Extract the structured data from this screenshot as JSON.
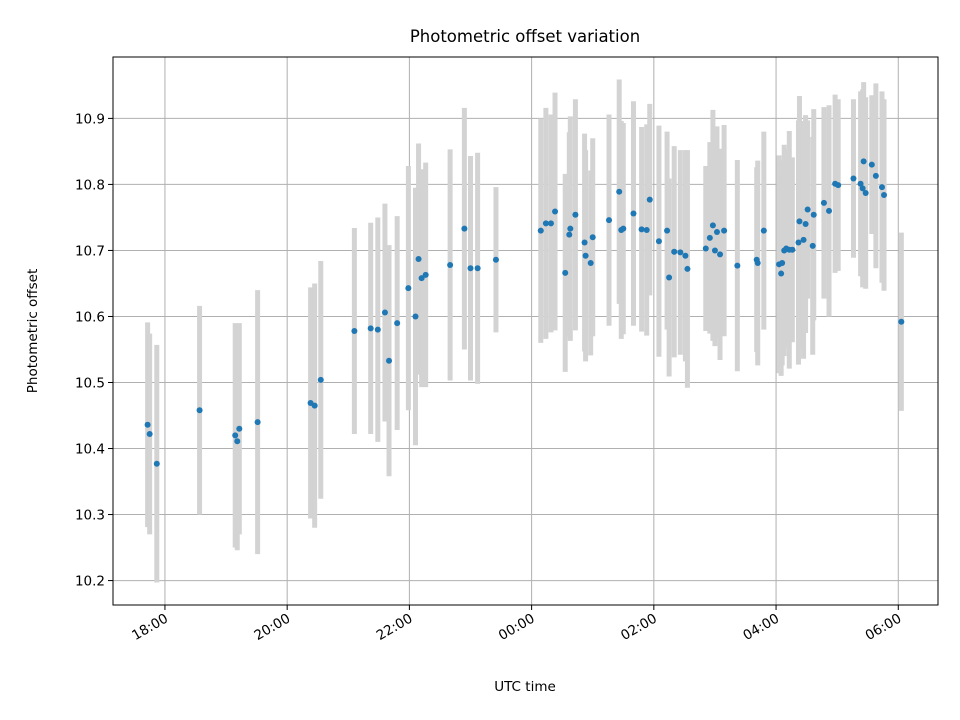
{
  "chart_data": {
    "type": "scatter",
    "title": "Photometric offset variation",
    "xlabel": "UTC time",
    "ylabel": "Photometric offset",
    "x_axis_type": "time",
    "x_range_hours_from_1800": [
      -0.85,
      12.65
    ],
    "ylim": [
      10.163,
      10.993
    ],
    "xtick_labels": [
      "18:00",
      "20:00",
      "22:00",
      "00:00",
      "02:00",
      "04:00",
      "06:00"
    ],
    "ytick_values": [
      10.2,
      10.3,
      10.4,
      10.5,
      10.6,
      10.7,
      10.8,
      10.9
    ],
    "ytick_labels": [
      "10.2",
      "10.3",
      "10.4",
      "10.5",
      "10.6",
      "10.7",
      "10.8",
      "10.9"
    ],
    "grid": true,
    "legend": false,
    "colors": {
      "point": "#1f77b4",
      "errorbar": "#d3d3d3",
      "grid": "#b0b0b0"
    },
    "series": [
      {
        "x": [
          "17:43",
          "17:45",
          "17:52",
          "18:34",
          "19:09",
          "19:11",
          "19:13",
          "19:31",
          "20:23",
          "20:27",
          "20:33",
          "21:06",
          "21:22",
          "21:29",
          "21:36",
          "21:40",
          "21:48",
          "21:59",
          "22:06",
          "22:09",
          "22:12",
          "22:16",
          "22:40",
          "22:54",
          "23:00",
          "23:07",
          "23:25",
          "00:09",
          "00:14",
          "00:19",
          "00:23",
          "00:33",
          "00:37",
          "00:38",
          "00:43",
          "00:52",
          "00:53",
          "00:58",
          "01:00",
          "01:16",
          "01:26",
          "01:28",
          "01:30",
          "01:40",
          "01:48",
          "01:53",
          "01:56",
          "02:05",
          "02:13",
          "02:15",
          "02:20",
          "02:26",
          "02:31",
          "02:33",
          "02:51",
          "02:55",
          "02:58",
          "03:00",
          "03:02",
          "03:05",
          "03:09",
          "03:22",
          "03:41",
          "03:42",
          "03:48",
          "04:03",
          "04:05",
          "04:06",
          "04:08",
          "04:10",
          "04:13",
          "04:16",
          "04:22",
          "04:23",
          "04:27",
          "04:29",
          "04:31",
          "04:36",
          "04:37",
          "04:47",
          "04:52",
          "04:58",
          "05:01",
          "05:16",
          "05:23",
          "05:25",
          "05:26",
          "05:28",
          "05:34",
          "05:38",
          "05:44",
          "05:46",
          "06:03"
        ],
        "y": [
          10.436,
          10.422,
          10.377,
          10.458,
          10.42,
          10.411,
          10.43,
          10.44,
          10.469,
          10.465,
          10.504,
          10.578,
          10.582,
          10.58,
          10.606,
          10.533,
          10.59,
          10.643,
          10.6,
          10.687,
          10.658,
          10.663,
          10.678,
          10.733,
          10.673,
          10.673,
          10.686,
          10.73,
          10.741,
          10.741,
          10.759,
          10.666,
          10.724,
          10.733,
          10.754,
          10.712,
          10.692,
          10.681,
          10.72,
          10.746,
          10.789,
          10.731,
          10.733,
          10.756,
          10.732,
          10.731,
          10.777,
          10.714,
          10.73,
          10.659,
          10.698,
          10.697,
          10.692,
          10.672,
          10.703,
          10.719,
          10.738,
          10.7,
          10.728,
          10.694,
          10.73,
          10.677,
          10.686,
          10.681,
          10.73,
          10.679,
          10.665,
          10.681,
          10.7,
          10.703,
          10.701,
          10.701,
          10.712,
          10.744,
          10.716,
          10.74,
          10.762,
          10.707,
          10.754,
          10.772,
          10.76,
          10.801,
          10.799,
          10.809,
          10.801,
          10.794,
          10.835,
          10.787,
          10.83,
          10.813,
          10.796,
          10.784,
          10.592
        ],
        "yerr": [
          0.155,
          0.152,
          0.18,
          0.158,
          0.17,
          0.165,
          0.16,
          0.2,
          0.175,
          0.185,
          0.18,
          0.156,
          0.16,
          0.17,
          0.165,
          0.175,
          0.162,
          0.185,
          0.195,
          0.175,
          0.165,
          0.17,
          0.175,
          0.183,
          0.17,
          0.175,
          0.11,
          0.17,
          0.175,
          0.165,
          0.18,
          0.15,
          0.155,
          0.17,
          0.175,
          0.165,
          0.16,
          0.14,
          0.15,
          0.16,
          0.17,
          0.165,
          0.16,
          0.17,
          0.155,
          0.16,
          0.145,
          0.175,
          0.15,
          0.15,
          0.16,
          0.155,
          0.16,
          0.18,
          0.125,
          0.145,
          0.175,
          0.145,
          0.16,
          0.16,
          0.16,
          0.16,
          0.14,
          0.155,
          0.15,
          0.165,
          0.155,
          0.155,
          0.16,
          0.15,
          0.18,
          0.14,
          0.185,
          0.19,
          0.18,
          0.165,
          0.135,
          0.165,
          0.16,
          0.145,
          0.16,
          0.135,
          0.13,
          0.12,
          0.14,
          0.15,
          0.12,
          0.145,
          0.105,
          0.14,
          0.145,
          0.145,
          0.135
        ]
      }
    ]
  }
}
